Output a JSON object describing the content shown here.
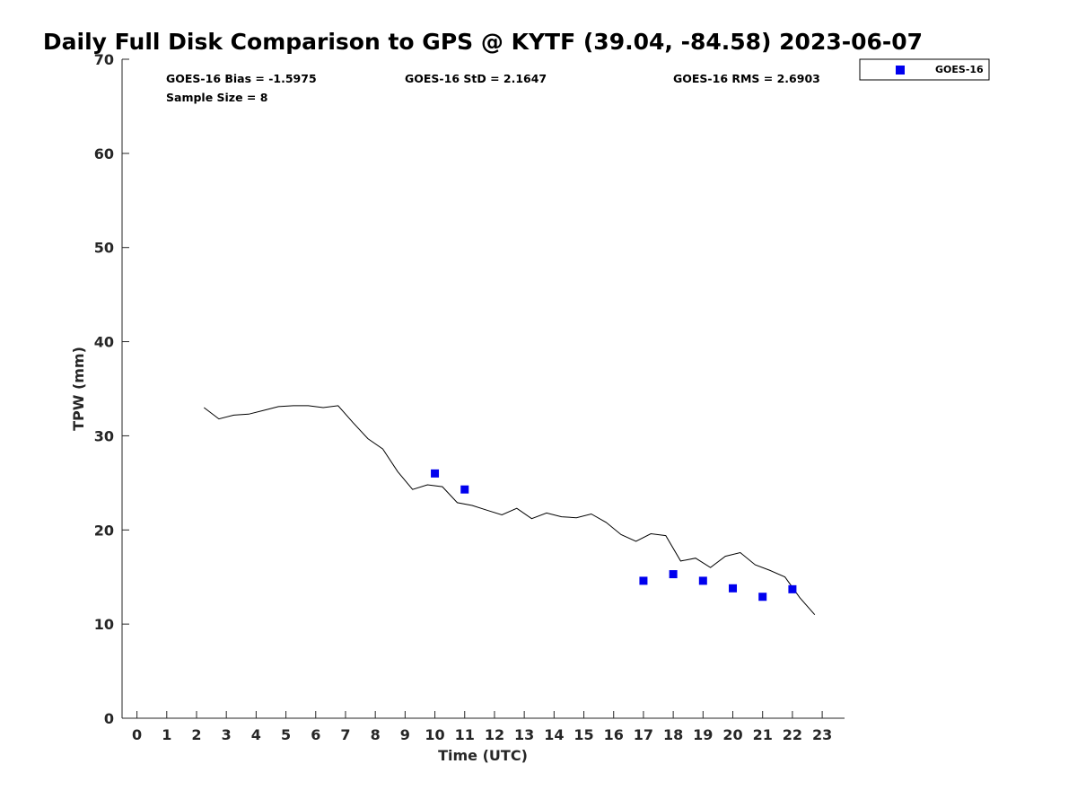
{
  "chart_data": {
    "type": "line",
    "title": "Daily Full Disk Comparison to GPS @ KYTF (39.04, -84.58) 2023-06-07",
    "xlabel": "Time (UTC)",
    "ylabel": "TPW (mm)",
    "xlim": [
      -0.5,
      23.75
    ],
    "ylim": [
      0,
      70
    ],
    "x_ticks": [
      "0",
      "1",
      "2",
      "3",
      "4",
      "5",
      "6",
      "7",
      "8",
      "9",
      "10",
      "11",
      "12",
      "13",
      "14",
      "15",
      "16",
      "17",
      "18",
      "19",
      "20",
      "21",
      "22",
      "23"
    ],
    "y_ticks": [
      "0",
      "10",
      "20",
      "30",
      "40",
      "50",
      "60",
      "70"
    ],
    "grid": false,
    "legend_position": "top-right, outside plot",
    "stats": {
      "bias": "GOES-16 Bias = -1.5975",
      "std": "GOES-16 StD = 2.1647",
      "rms": "GOES-16 RMS = 2.6903",
      "sample_size": "Sample Size = 8"
    },
    "gps_series": {
      "color": "#000000",
      "x": [
        2.25,
        2.75,
        3.25,
        3.75,
        4.25,
        4.75,
        5.25,
        5.75,
        6.25,
        6.75,
        7.25,
        7.75,
        8.25,
        8.75,
        9.25,
        9.75,
        10.25,
        10.75,
        11.25,
        11.75,
        12.25,
        12.75,
        13.25,
        13.75,
        14.25,
        14.75,
        15.25,
        15.75,
        16.25,
        16.75,
        17.25,
        17.75,
        18.25,
        18.75,
        19.25,
        19.75,
        20.25,
        20.75,
        21.25,
        21.75,
        22.25,
        22.75
      ],
      "y": [
        33.0,
        31.8,
        32.2,
        32.3,
        32.7,
        33.1,
        33.2,
        33.2,
        33.0,
        33.2,
        31.4,
        29.7,
        28.6,
        26.2,
        24.3,
        24.8,
        24.6,
        22.9,
        22.6,
        22.1,
        21.6,
        22.3,
        21.2,
        21.8,
        21.4,
        21.3,
        21.7,
        20.8,
        19.5,
        18.8,
        19.6,
        19.4,
        16.7,
        17.0,
        16.0,
        17.2,
        17.6,
        16.3,
        15.7,
        15.0,
        12.8,
        11.0
      ]
    },
    "series": [
      {
        "name": "GOES-16",
        "color": "#0000ee",
        "marker": "square",
        "x": [
          10,
          11,
          17,
          18,
          19,
          20,
          21,
          22
        ],
        "y": [
          26.0,
          24.3,
          14.6,
          15.3,
          14.6,
          13.8,
          12.9,
          13.7
        ]
      }
    ]
  }
}
